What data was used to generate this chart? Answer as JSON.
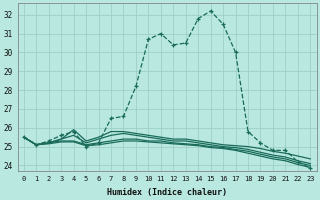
{
  "title": "",
  "xlabel": "Humidex (Indice chaleur)",
  "background_color": "#b8e8e0",
  "grid_color": "#9ecfc8",
  "line_color": "#1a6b5a",
  "xlim": [
    -0.5,
    23.5
  ],
  "ylim": [
    23.7,
    32.6
  ],
  "yticks": [
    24,
    25,
    26,
    27,
    28,
    29,
    30,
    31,
    32
  ],
  "xticks": [
    0,
    1,
    2,
    3,
    4,
    5,
    6,
    7,
    8,
    9,
    10,
    11,
    12,
    13,
    14,
    15,
    16,
    17,
    18,
    19,
    20,
    21,
    22,
    23
  ],
  "curves": [
    {
      "y": [
        25.5,
        25.1,
        25.3,
        25.6,
        25.8,
        25.0,
        25.2,
        26.5,
        26.6,
        28.2,
        30.7,
        31.0,
        30.4,
        30.5,
        31.8,
        32.2,
        31.5,
        30.0,
        25.8,
        25.2,
        24.8,
        24.8,
        24.2,
        23.85
      ],
      "marker": true,
      "linestyle": "--"
    },
    {
      "y": [
        25.5,
        25.1,
        25.2,
        25.4,
        25.9,
        25.3,
        25.5,
        25.8,
        25.8,
        25.7,
        25.6,
        25.5,
        25.4,
        25.4,
        25.3,
        25.2,
        25.1,
        25.05,
        25.0,
        24.9,
        24.75,
        24.65,
        24.5,
        24.35
      ],
      "marker": false,
      "linestyle": "-"
    },
    {
      "y": [
        25.5,
        25.1,
        25.2,
        25.4,
        25.6,
        25.2,
        25.4,
        25.6,
        25.7,
        25.6,
        25.5,
        25.4,
        25.3,
        25.3,
        25.2,
        25.1,
        25.0,
        24.95,
        24.85,
        24.7,
        24.55,
        24.45,
        24.25,
        24.1
      ],
      "marker": false,
      "linestyle": "-"
    },
    {
      "y": [
        25.5,
        25.1,
        25.2,
        25.3,
        25.3,
        25.1,
        25.2,
        25.3,
        25.4,
        25.4,
        25.3,
        25.3,
        25.2,
        25.15,
        25.1,
        25.0,
        24.95,
        24.85,
        24.75,
        24.6,
        24.45,
        24.35,
        24.15,
        24.0
      ],
      "marker": false,
      "linestyle": "-"
    },
    {
      "y": [
        25.5,
        25.1,
        25.15,
        25.25,
        25.25,
        25.05,
        25.1,
        25.2,
        25.3,
        25.3,
        25.25,
        25.2,
        25.15,
        25.1,
        25.05,
        24.95,
        24.9,
        24.8,
        24.65,
        24.5,
        24.35,
        24.25,
        24.05,
        23.9
      ],
      "marker": false,
      "linestyle": "-"
    }
  ]
}
